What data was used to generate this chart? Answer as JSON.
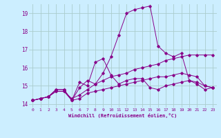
{
  "xlabel": "Windchill (Refroidissement éolien,°C)",
  "bg_color": "#cceeff",
  "grid_color": "#aacccc",
  "line_color": "#880088",
  "xlim": [
    -0.5,
    23.5
  ],
  "ylim": [
    13.8,
    19.5
  ],
  "ytick_vals": [
    14,
    15,
    16,
    17,
    18,
    19
  ],
  "xtick_vals": [
    0,
    1,
    2,
    3,
    4,
    5,
    6,
    7,
    8,
    9,
    10,
    11,
    12,
    13,
    14,
    15,
    16,
    17,
    18,
    19,
    20,
    21,
    22,
    23
  ],
  "line1_x": [
    0,
    1,
    2,
    3,
    4,
    5,
    6,
    7,
    8,
    9,
    10,
    11,
    12,
    13,
    14,
    15,
    16,
    17,
    18,
    19,
    20,
    21,
    22,
    23
  ],
  "line1_y": [
    14.2,
    14.3,
    14.4,
    14.7,
    14.7,
    14.3,
    14.5,
    14.8,
    15.1,
    15.3,
    15.5,
    15.6,
    15.7,
    15.9,
    16.0,
    16.1,
    16.2,
    16.4,
    16.5,
    16.6,
    16.7,
    16.7,
    16.7,
    16.7
  ],
  "line2_x": [
    0,
    1,
    2,
    3,
    4,
    5,
    6,
    7,
    8,
    9,
    10,
    11,
    12,
    13,
    14,
    15,
    16,
    17,
    18,
    19,
    20,
    21,
    22,
    23
  ],
  "line2_y": [
    14.2,
    14.3,
    14.4,
    14.7,
    14.7,
    14.2,
    14.3,
    14.6,
    14.7,
    14.8,
    14.9,
    15.0,
    15.1,
    15.2,
    15.3,
    15.4,
    15.5,
    15.5,
    15.6,
    15.7,
    15.6,
    15.5,
    15.0,
    14.9
  ],
  "line3_x": [
    0,
    1,
    2,
    3,
    4,
    5,
    6,
    7,
    8,
    9,
    10,
    11,
    12,
    13,
    14,
    15,
    16,
    17,
    18,
    19,
    20,
    21,
    22,
    23
  ],
  "line3_y": [
    14.2,
    14.3,
    14.4,
    14.8,
    14.8,
    14.2,
    15.2,
    15.0,
    16.3,
    16.5,
    15.6,
    15.1,
    15.3,
    15.4,
    15.4,
    14.9,
    14.8,
    15.0,
    15.1,
    15.2,
    15.3,
    15.2,
    15.0,
    14.9
  ],
  "line4_x": [
    0,
    1,
    2,
    3,
    4,
    5,
    6,
    7,
    8,
    9,
    10,
    11,
    12,
    13,
    14,
    15,
    16,
    17,
    18,
    19,
    20,
    21,
    22,
    23
  ],
  "line4_y": [
    14.2,
    14.3,
    14.4,
    14.8,
    14.8,
    14.2,
    14.9,
    15.3,
    15.1,
    15.7,
    16.6,
    17.8,
    19.0,
    19.2,
    19.3,
    19.4,
    17.2,
    16.8,
    16.6,
    16.8,
    15.3,
    15.1,
    14.8,
    14.9
  ]
}
